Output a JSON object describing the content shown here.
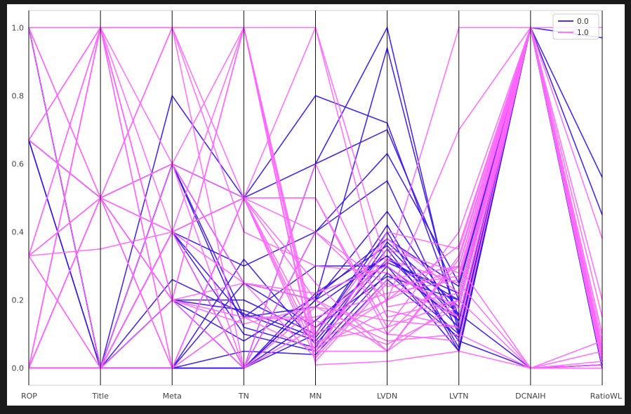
{
  "chart_data": {
    "type": "line",
    "subtype": "parallel-coordinates",
    "title": "",
    "xlabel": "",
    "ylabel": "",
    "axes": [
      "ROP",
      "Title",
      "Meta",
      "TN",
      "MN",
      "LVDN",
      "LVTN",
      "DCNAIH",
      "RatioWL"
    ],
    "ylim": [
      -0.05,
      1.05
    ],
    "yticks": [
      "0.0",
      "0.2",
      "0.4",
      "0.6",
      "0.8",
      "1.0"
    ],
    "grid": false,
    "legend_position": "top-right",
    "series": [
      {
        "name": "0.0",
        "color": "#3a12e6",
        "lines": [
          [
            0,
            0,
            0,
            0,
            0.4,
            0.55,
            0.1,
            1,
            0.97
          ],
          [
            0,
            0,
            0,
            0,
            0.6,
            1.0,
            0.1,
            1,
            0.56
          ],
          [
            0,
            0,
            0,
            0,
            0.2,
            0.94,
            0.12,
            1,
            0.45
          ],
          [
            0,
            0,
            0.8,
            0.5,
            0.8,
            0.72,
            0.15,
            1,
            0.02
          ],
          [
            0,
            0,
            0.6,
            0.5,
            0.6,
            0.7,
            0.2,
            1,
            0.02
          ],
          [
            0,
            0,
            0.4,
            0.3,
            0.4,
            0.63,
            0.25,
            1,
            0.01
          ],
          [
            0.67,
            0.5,
            0.6,
            0.25,
            0.2,
            0.46,
            0.15,
            1,
            0.01
          ],
          [
            0.67,
            0.5,
            0.2,
            0.2,
            0.1,
            0.4,
            0.05,
            1,
            0.02
          ],
          [
            0.67,
            0,
            0.26,
            0.16,
            0.08,
            0.32,
            0.2,
            1,
            0
          ],
          [
            1,
            0,
            0.4,
            0.15,
            0.3,
            0.3,
            0.05,
            1,
            0.01
          ],
          [
            1,
            0,
            0.2,
            0.17,
            0.09,
            0.35,
            0.08,
            0,
            0.01
          ],
          [
            1,
            0,
            0.4,
            0.1,
            0.05,
            0.28,
            0.1,
            1,
            0.01
          ],
          [
            1,
            0,
            0.6,
            0.12,
            0.06,
            0.37,
            0.18,
            1,
            0.01
          ],
          [
            0,
            0,
            0,
            0.32,
            0.07,
            0.3,
            0.14,
            1,
            0.01
          ],
          [
            0,
            0,
            0.2,
            0.08,
            0.21,
            0.38,
            0.24,
            1,
            0
          ],
          [
            0,
            0,
            0,
            0.25,
            0.12,
            0.27,
            0.2,
            1,
            0.02
          ],
          [
            0,
            0,
            0.4,
            0,
            0.2,
            0.33,
            0.12,
            1,
            0.01
          ],
          [
            0,
            0,
            0,
            0,
            0.1,
            0.42,
            0.06,
            1,
            0.02
          ],
          [
            0,
            0,
            0,
            0.05,
            0.04,
            0.26,
            0.09,
            1,
            0.01
          ],
          [
            0,
            0,
            0.2,
            0,
            0.22,
            0.36,
            0.14,
            1,
            0.03
          ],
          [
            0.67,
            0,
            0,
            0,
            0.14,
            0.31,
            0.22,
            1,
            0.02
          ],
          [
            0,
            0,
            0.6,
            0.15,
            0.18,
            0.33,
            0.16,
            0,
            0.01
          ]
        ]
      },
      {
        "name": "1.0",
        "color": "#ff66ff",
        "lines": [
          [
            1,
            1,
            1,
            1,
            1,
            0.3,
            1,
            1,
            1
          ],
          [
            0.67,
            1,
            0.2,
            0,
            0.4,
            0.2,
            0.7,
            1,
            0.2
          ],
          [
            0.33,
            0.35,
            0.4,
            0.5,
            0.5,
            0.1,
            0.3,
            1,
            0.1
          ],
          [
            0,
            0.5,
            0.6,
            1,
            0.1,
            0.2,
            0.3,
            0,
            0.05
          ],
          [
            0,
            1,
            0,
            0.5,
            0.2,
            0.05,
            0.2,
            1,
            0.04
          ],
          [
            0.33,
            0.5,
            1,
            0,
            0.6,
            0.15,
            0.2,
            0,
            0.08
          ],
          [
            1,
            0,
            0.4,
            1,
            0.02,
            0.25,
            0.15,
            1,
            0.06
          ],
          [
            0,
            0.5,
            0,
            0.5,
            0.05,
            0.35,
            0.28,
            1,
            0.03
          ],
          [
            0.33,
            1,
            0.2,
            0.13,
            0.18,
            0.08,
            0.1,
            0,
            0.02
          ],
          [
            0,
            0,
            0.6,
            0.25,
            0.03,
            0.4,
            0.35,
            1,
            0.38
          ],
          [
            0.67,
            0.5,
            0.4,
            0.5,
            1,
            0.18,
            0.22,
            1,
            0.15
          ],
          [
            0,
            1,
            1,
            0.4,
            0.3,
            0.28,
            0.18,
            1,
            0.02
          ],
          [
            0.33,
            0,
            0.2,
            1,
            0.08,
            0.12,
            0.4,
            1,
            0.05
          ],
          [
            1,
            0.5,
            0,
            0.15,
            0.15,
            0.22,
            0.26,
            1,
            0.01
          ],
          [
            0,
            1,
            0.4,
            0.5,
            0.25,
            0.05,
            0.32,
            1,
            0.03
          ],
          [
            0,
            0.5,
            0.2,
            1,
            0.06,
            0.17,
            0.12,
            1,
            0.02
          ],
          [
            0.67,
            1,
            0.6,
            0,
            0.12,
            0.32,
            0.25,
            0,
            0.01
          ],
          [
            0.33,
            0,
            0.4,
            0.25,
            0.2,
            0.1,
            0.08,
            1,
            0.04
          ],
          [
            0,
            0.5,
            1,
            0.5,
            0.03,
            0.26,
            0.3,
            1,
            0.06
          ],
          [
            1,
            1,
            0.2,
            0.15,
            0.14,
            0.07,
            0.18,
            1,
            0.02
          ],
          [
            0,
            0,
            0,
            0.5,
            0.07,
            0.2,
            0.36,
            1,
            0.01
          ],
          [
            0.33,
            1,
            0,
            0.5,
            0.1,
            0.38,
            0.22,
            1,
            0.05
          ],
          [
            0,
            0.5,
            0.4,
            0,
            0.18,
            0.14,
            0.12,
            1,
            0.02
          ],
          [
            1,
            0.5,
            0.6,
            0.5,
            0.4,
            0.24,
            0.27,
            1,
            0.03
          ],
          [
            0,
            1,
            1,
            1,
            0.01,
            0.02,
            0.05,
            0,
            0
          ],
          [
            0.33,
            0.5,
            0.2,
            0.25,
            0.22,
            0.3,
            0.15,
            1,
            0.08
          ],
          [
            0,
            0,
            0.4,
            0.5,
            0.5,
            0.12,
            0.2,
            1,
            0.04
          ],
          [
            0.67,
            0.5,
            0,
            0.15,
            0.05,
            0.05,
            0.33,
            1,
            0.02
          ]
        ]
      }
    ]
  }
}
